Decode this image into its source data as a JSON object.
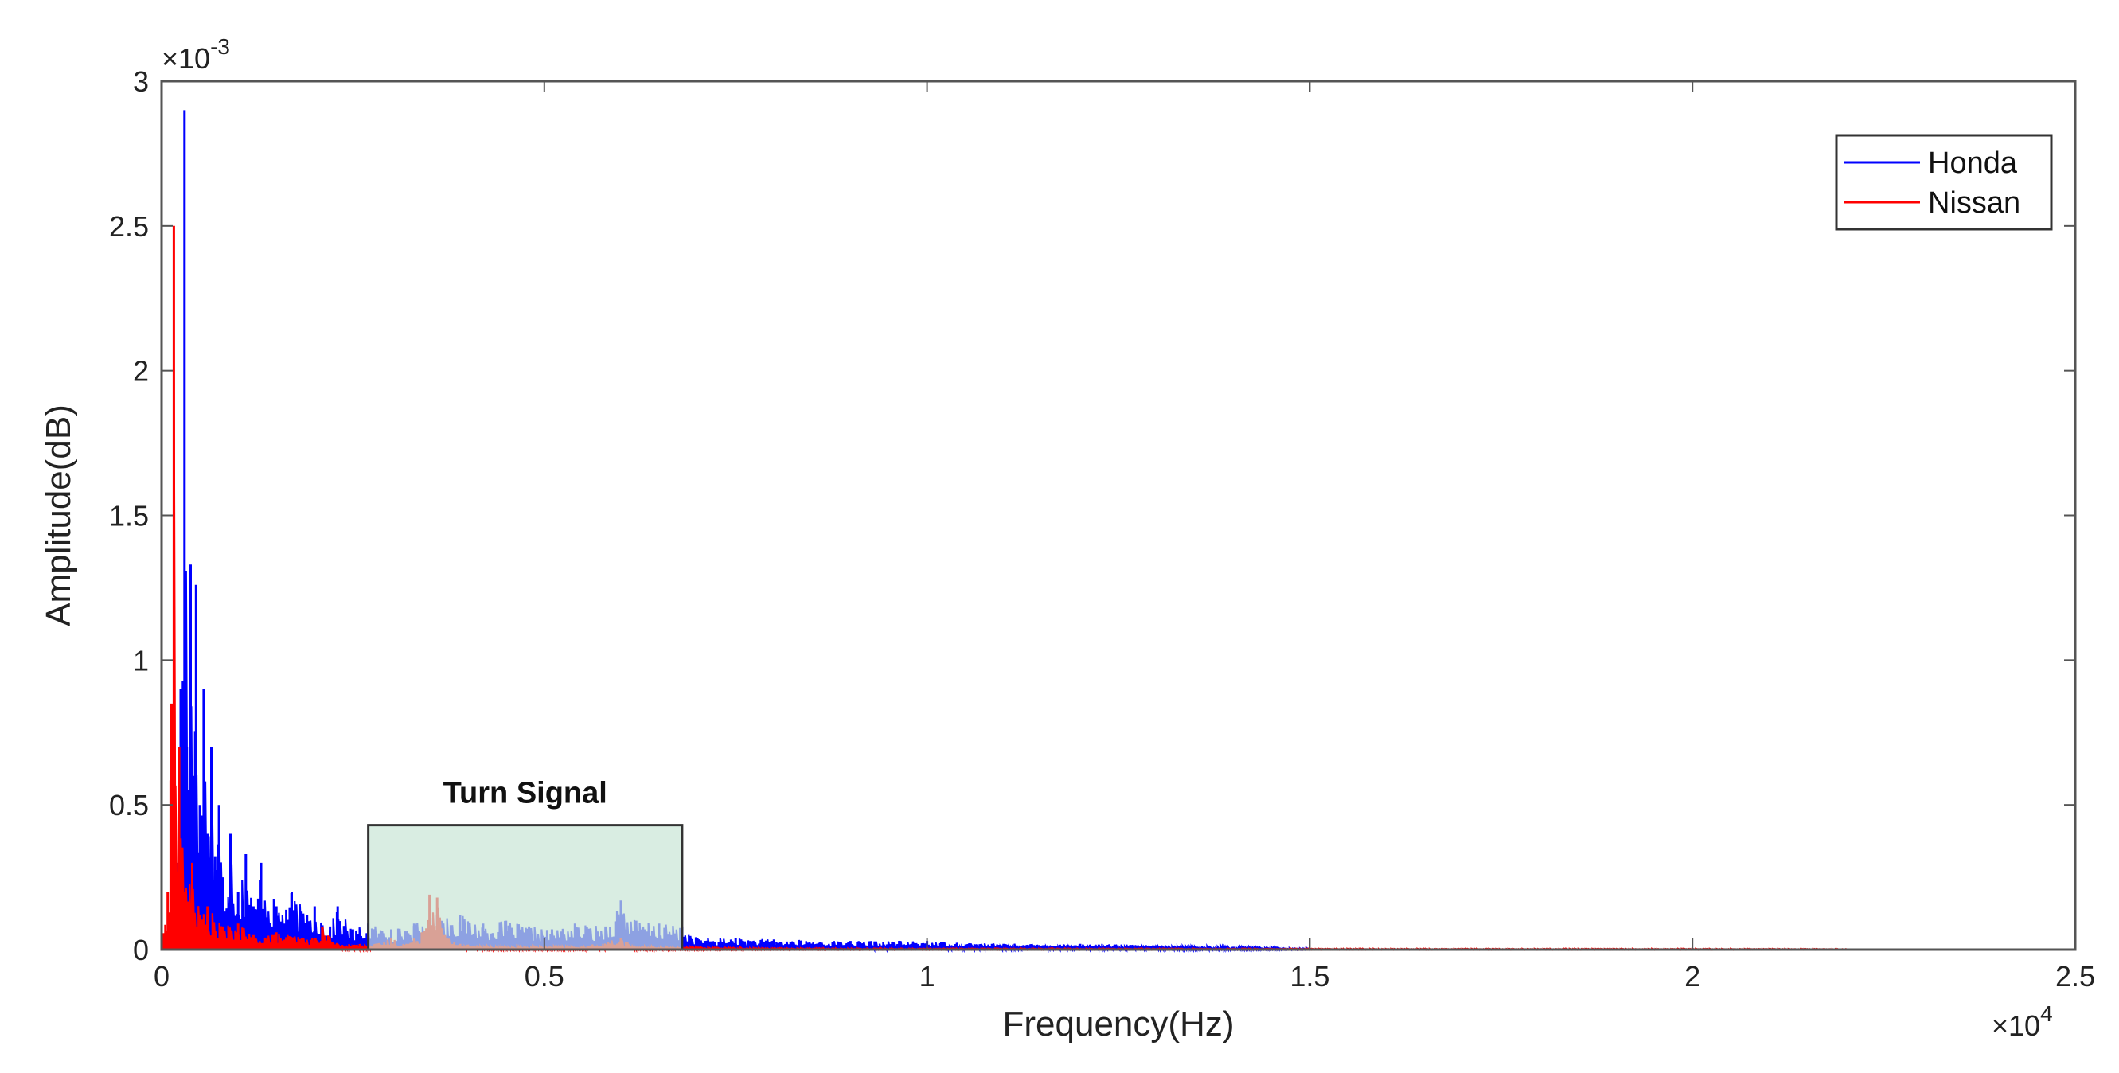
{
  "chart_data": {
    "type": "line",
    "title": "",
    "xlabel": "Frequency(Hz)",
    "ylabel": "Amplitude(dB)",
    "x_exponent_label": "×10",
    "x_exponent_power": "4",
    "y_exponent_label": "×10",
    "y_exponent_power": "-3",
    "xlim": [
      0,
      25000
    ],
    "ylim": [
      0,
      0.003
    ],
    "x_ticks": [
      0,
      5000,
      10000,
      15000,
      20000,
      25000
    ],
    "x_tick_labels": [
      "0",
      "0.5",
      "1",
      "1.5",
      "2",
      "2.5"
    ],
    "y_ticks": [
      0,
      0.0005,
      0.001,
      0.0015,
      0.002,
      0.0025,
      0.003
    ],
    "y_tick_labels": [
      "0",
      "0.5",
      "1",
      "1.5",
      "2",
      "2.5",
      "3"
    ],
    "grid": false,
    "legend_position": "top-right",
    "series": [
      {
        "name": "Honda",
        "color": "#0000ff",
        "x_max": 15000,
        "points": [
          [
            0,
            0
          ],
          [
            100,
            6e-05
          ],
          [
            200,
            0.0003
          ],
          [
            250,
            0.0009
          ],
          [
            300,
            0.0029
          ],
          [
            330,
            0.0007
          ],
          [
            380,
            0.00133
          ],
          [
            420,
            0.0006
          ],
          [
            450,
            0.00126
          ],
          [
            500,
            0.0005
          ],
          [
            550,
            0.0009
          ],
          [
            600,
            0.0004
          ],
          [
            650,
            0.0007
          ],
          [
            700,
            0.00032
          ],
          [
            750,
            0.0005
          ],
          [
            800,
            0.00025
          ],
          [
            900,
            0.0004
          ],
          [
            1000,
            0.0002
          ],
          [
            1100,
            0.00033
          ],
          [
            1200,
            0.00015
          ],
          [
            1300,
            0.0003
          ],
          [
            1500,
            0.00015
          ],
          [
            1700,
            0.0002
          ],
          [
            1900,
            0.00012
          ],
          [
            2000,
            0.00015
          ],
          [
            2200,
            8e-05
          ],
          [
            2300,
            0.00015
          ],
          [
            2500,
            7e-05
          ],
          [
            2700,
            9e-05
          ],
          [
            3000,
            7e-05
          ],
          [
            3300,
            9e-05
          ],
          [
            3600,
            0.00012
          ],
          [
            3900,
            0.00012
          ],
          [
            4200,
            9e-05
          ],
          [
            4500,
            0.0001
          ],
          [
            4800,
            8e-05
          ],
          [
            5100,
            7e-05
          ],
          [
            5400,
            9e-05
          ],
          [
            5800,
            8e-05
          ],
          [
            6000,
            0.00017
          ],
          [
            6200,
            0.0001
          ],
          [
            6500,
            9e-05
          ],
          [
            6800,
            8e-05
          ],
          [
            7000,
            4e-05
          ],
          [
            7500,
            4e-05
          ],
          [
            8000,
            3.5e-05
          ],
          [
            9000,
            3e-05
          ],
          [
            10000,
            3e-05
          ],
          [
            11000,
            2e-05
          ],
          [
            12000,
            2e-05
          ],
          [
            13000,
            1.5e-05
          ],
          [
            14000,
            1e-05
          ],
          [
            15000,
            5e-06
          ]
        ]
      },
      {
        "name": "Nissan",
        "color": "#ff0000",
        "x_max": 22050,
        "points": [
          [
            0,
            0
          ],
          [
            80,
            0.0002
          ],
          [
            130,
            0.00085
          ],
          [
            160,
            0.0025
          ],
          [
            190,
            0.0003
          ],
          [
            230,
            0.0007
          ],
          [
            300,
            0.0002
          ],
          [
            400,
            0.0003
          ],
          [
            500,
            0.00012
          ],
          [
            600,
            0.00015
          ],
          [
            800,
            8e-05
          ],
          [
            1000,
            9e-05
          ],
          [
            1200,
            5e-05
          ],
          [
            1500,
            6e-05
          ],
          [
            2000,
            4e-05
          ],
          [
            2100,
            8e-05
          ],
          [
            2300,
            2e-05
          ],
          [
            2800,
            2e-05
          ],
          [
            3000,
            4e-05
          ],
          [
            3200,
            2e-05
          ],
          [
            3400,
            6e-05
          ],
          [
            3500,
            0.00019
          ],
          [
            3600,
            0.00018
          ],
          [
            3700,
            5e-05
          ],
          [
            3900,
            2e-05
          ],
          [
            4500,
            1e-05
          ],
          [
            5500,
            1e-05
          ],
          [
            6000,
            4e-05
          ],
          [
            6200,
            1e-05
          ],
          [
            8000,
            5e-06
          ],
          [
            10000,
            4e-06
          ],
          [
            15000,
            3e-06
          ],
          [
            20000,
            3e-06
          ],
          [
            22050,
            2e-06
          ]
        ]
      }
    ],
    "annotation": {
      "text": "Turn Signal",
      "x_range": [
        2700,
        6800
      ],
      "y_range": [
        0,
        0.00043
      ],
      "fill": "#c9e6d6"
    }
  }
}
